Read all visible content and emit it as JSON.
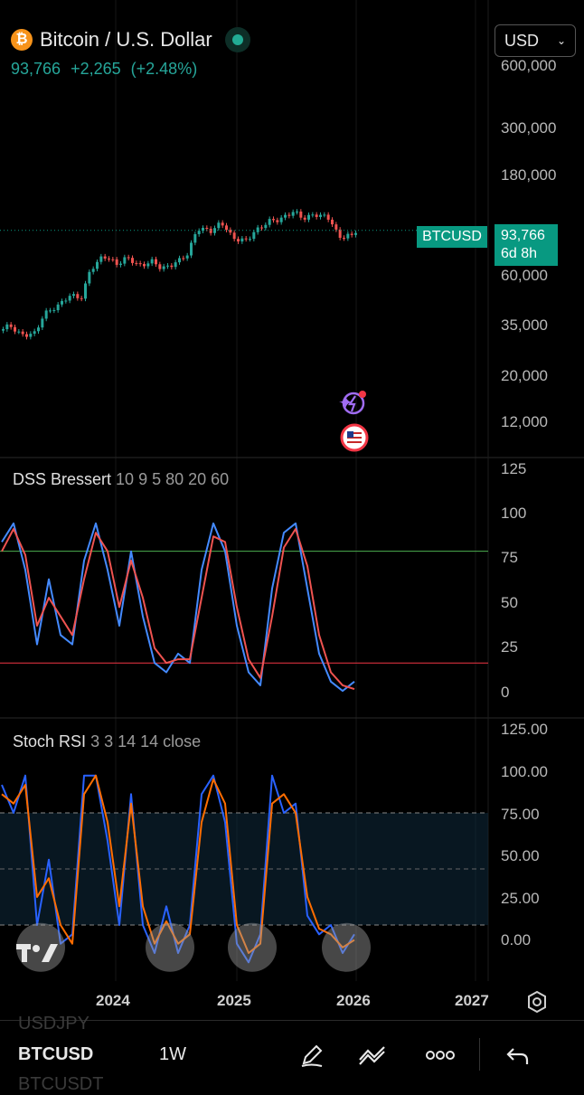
{
  "header": {
    "icon": "bitcoin-icon",
    "title": "Bitcoin / U.S. Dollar",
    "price": "93,766",
    "change": "+2,265",
    "change_pct": "(+2.48%)",
    "currency": "USD",
    "colors": {
      "up": "#26a69a",
      "down": "#ef5350",
      "tag": "#089981"
    }
  },
  "price_axis": {
    "labels": [
      "600,000",
      "300,000",
      "180,000",
      "60,000",
      "35,000",
      "20,000",
      "12,000"
    ],
    "symbol_tag": "BTCUSD",
    "last_price": "93,766",
    "countdown": "6d 8h"
  },
  "dss": {
    "name": "DSS Bressert",
    "params": "10 9 5 80 20 60",
    "axis": [
      "125",
      "100",
      "75",
      "50",
      "25",
      "0"
    ],
    "upper_level": 80,
    "lower_level": 20
  },
  "stoch": {
    "name": "Stoch RSI",
    "params": "3 3 14 14 close",
    "axis": [
      "125.00",
      "100.00",
      "75.00",
      "50.00",
      "25.00",
      "0.00"
    ],
    "upper_band": 80,
    "lower_band": 20
  },
  "time_axis": {
    "labels": [
      "2024",
      "2025",
      "2026",
      "2027"
    ]
  },
  "bottom": {
    "prev_symbol": "USDJPY",
    "symbol": "BTCUSD",
    "interval": "1W",
    "next_symbol": "BTCUSDT",
    "icons": [
      "pencil-icon",
      "drawing-tools-icon",
      "more-icon",
      "undo-icon"
    ]
  },
  "chart_data": [
    {
      "type": "candlestick",
      "title": "Bitcoin / U.S. Dollar",
      "yscale": "log",
      "ylim": [
        9000,
        700000
      ],
      "x": [
        "2023-07",
        "2023-08",
        "2023-09",
        "2023-10",
        "2023-11",
        "2023-12",
        "2024-01",
        "2024-02",
        "2024-03",
        "2024-04",
        "2024-05",
        "2024-06",
        "2024-07",
        "2024-08",
        "2024-09",
        "2024-10",
        "2024-11",
        "2024-12",
        "2025-01",
        "2025-02",
        "2025-03",
        "2025-04",
        "2025-05",
        "2025-06",
        "2025-07",
        "2025-08",
        "2025-09",
        "2025-10",
        "2025-11",
        "2025-12",
        "2026-01"
      ],
      "close": [
        29500,
        26500,
        27000,
        34500,
        37500,
        42500,
        42000,
        61000,
        69000,
        63000,
        67000,
        61000,
        64000,
        59000,
        63000,
        70000,
        96000,
        94000,
        102000,
        85000,
        83000,
        94000,
        104000,
        107000,
        117000,
        109000,
        114000,
        110000,
        87000,
        88000,
        93766
      ]
    },
    {
      "type": "line",
      "title": "DSS Bressert",
      "ylim": [
        -10,
        125
      ],
      "x": [
        "2023-07",
        "2023-08",
        "2023-09",
        "2023-10",
        "2023-11",
        "2023-12",
        "2024-01",
        "2024-02",
        "2024-03",
        "2024-04",
        "2024-05",
        "2024-06",
        "2024-07",
        "2024-08",
        "2024-09",
        "2024-10",
        "2024-11",
        "2024-12",
        "2025-01",
        "2025-02",
        "2025-03",
        "2025-04",
        "2025-05",
        "2025-06",
        "2025-07",
        "2025-08",
        "2025-09",
        "2025-10",
        "2025-11",
        "2025-12",
        "2026-01"
      ],
      "series": [
        {
          "values": [
            85,
            95,
            70,
            30,
            65,
            35,
            30,
            75,
            95,
            70,
            40,
            80,
            45,
            20,
            15,
            25,
            20,
            70,
            95,
            80,
            40,
            15,
            8,
            60,
            90,
            95,
            60,
            25,
            10,
            5,
            10
          ]
        },
        {
          "values": [
            80,
            92,
            78,
            40,
            55,
            45,
            35,
            65,
            90,
            80,
            50,
            75,
            55,
            28,
            20,
            22,
            22,
            55,
            88,
            85,
            50,
            22,
            12,
            45,
            82,
            92,
            72,
            35,
            15,
            8,
            6
          ]
        }
      ],
      "levels": [
        80,
        20
      ]
    },
    {
      "type": "line",
      "title": "Stoch RSI",
      "ylim": [
        -10,
        125
      ],
      "x": [
        "2023-07",
        "2023-08",
        "2023-09",
        "2023-10",
        "2023-11",
        "2023-12",
        "2024-01",
        "2024-02",
        "2024-03",
        "2024-04",
        "2024-05",
        "2024-06",
        "2024-07",
        "2024-08",
        "2024-09",
        "2024-10",
        "2024-11",
        "2024-12",
        "2025-01",
        "2025-02",
        "2025-03",
        "2025-04",
        "2025-05",
        "2025-06",
        "2025-07",
        "2025-08",
        "2025-09",
        "2025-10",
        "2025-11",
        "2025-12",
        "2026-01"
      ],
      "series": [
        {
          "values": [
            95,
            80,
            100,
            20,
            55,
            10,
            15,
            100,
            100,
            65,
            20,
            90,
            20,
            5,
            30,
            5,
            20,
            90,
            100,
            75,
            10,
            0,
            15,
            100,
            80,
            85,
            25,
            15,
            20,
            5,
            15
          ]
        },
        {
          "values": [
            90,
            85,
            95,
            35,
            45,
            20,
            10,
            90,
            100,
            75,
            30,
            85,
            30,
            10,
            22,
            10,
            15,
            75,
            98,
            85,
            20,
            5,
            10,
            85,
            90,
            80,
            35,
            18,
            15,
            8,
            12
          ]
        }
      ],
      "bands": [
        80,
        20
      ]
    }
  ]
}
